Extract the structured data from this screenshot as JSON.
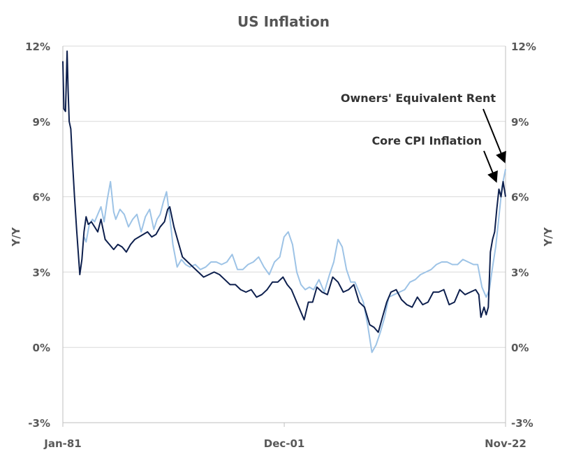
{
  "chart_data": {
    "type": "line",
    "title": "US Inflation",
    "ylabel": "Y/Y",
    "ylabel_right": "Y/Y",
    "ylim": [
      -3,
      12
    ],
    "y_ticks": [
      "12%",
      "9%",
      "6%",
      "3%",
      "0%",
      "-3%"
    ],
    "y_tick_values": [
      12,
      9,
      6,
      3,
      0,
      -3
    ],
    "x_ticks": [
      "Jan-81",
      "Dec-01",
      "Nov-22"
    ],
    "x_tick_values": [
      1981.0,
      2001.92,
      2022.83
    ],
    "xlim": [
      1981.0,
      2022.83
    ],
    "grid": true,
    "legend": "none",
    "annotations": [
      {
        "text": "Owners' Equivalent Rent",
        "series": "oer"
      },
      {
        "text": "Core CPI Inflation",
        "series": "core"
      }
    ],
    "series": [
      {
        "key": "core",
        "color": "#0d1f4d",
        "x": [
          1981.0,
          1981.1,
          1981.25,
          1981.4,
          1981.5,
          1981.6,
          1981.75,
          1981.9,
          1982.1,
          1982.3,
          1982.6,
          1982.8,
          1983.0,
          1983.2,
          1983.4,
          1983.7,
          1984.0,
          1984.3,
          1984.6,
          1985.0,
          1985.4,
          1985.8,
          1986.2,
          1986.6,
          1987.0,
          1987.4,
          1987.8,
          1988.2,
          1988.6,
          1989.0,
          1989.4,
          1989.8,
          1990.2,
          1990.6,
          1990.9,
          1991.1,
          1991.5,
          1991.9,
          1992.3,
          1992.8,
          1993.3,
          1993.8,
          1994.3,
          1994.8,
          1995.3,
          1995.8,
          1996.3,
          1996.8,
          1997.3,
          1997.8,
          1998.3,
          1998.8,
          1999.3,
          1999.8,
          2000.3,
          2000.8,
          2001.3,
          2001.8,
          2002.2,
          2002.6,
          2003.0,
          2003.4,
          2003.8,
          2004.2,
          2004.6,
          2005.0,
          2005.5,
          2006.0,
          2006.5,
          2007.0,
          2007.5,
          2008.0,
          2008.5,
          2009.0,
          2009.5,
          2010.0,
          2010.4,
          2010.8,
          2011.2,
          2011.6,
          2012.0,
          2012.5,
          2013.0,
          2013.5,
          2014.0,
          2014.5,
          2015.0,
          2015.5,
          2016.0,
          2016.5,
          2017.0,
          2017.5,
          2018.0,
          2018.5,
          2019.0,
          2019.5,
          2020.0,
          2020.3,
          2020.5,
          2020.8,
          2021.0,
          2021.2,
          2021.4,
          2021.6,
          2021.8,
          2022.0,
          2022.2,
          2022.4,
          2022.6,
          2022.83
        ],
        "y": [
          11.4,
          9.5,
          9.4,
          11.8,
          10.2,
          9.0,
          8.7,
          7.5,
          6.0,
          4.7,
          2.9,
          3.5,
          4.6,
          5.2,
          4.9,
          5.0,
          4.8,
          4.6,
          5.1,
          4.3,
          4.1,
          3.9,
          4.1,
          4.0,
          3.8,
          4.1,
          4.3,
          4.4,
          4.5,
          4.6,
          4.4,
          4.5,
          4.8,
          5.0,
          5.5,
          5.6,
          4.8,
          4.2,
          3.6,
          3.4,
          3.2,
          3.0,
          2.8,
          2.9,
          3.0,
          2.9,
          2.7,
          2.5,
          2.5,
          2.3,
          2.2,
          2.3,
          2.0,
          2.1,
          2.3,
          2.6,
          2.6,
          2.8,
          2.5,
          2.3,
          1.9,
          1.5,
          1.1,
          1.8,
          1.8,
          2.4,
          2.2,
          2.1,
          2.8,
          2.6,
          2.2,
          2.3,
          2.5,
          1.8,
          1.6,
          0.9,
          0.8,
          0.6,
          1.2,
          1.8,
          2.2,
          2.3,
          1.9,
          1.7,
          1.6,
          2.0,
          1.7,
          1.8,
          2.2,
          2.2,
          2.3,
          1.7,
          1.8,
          2.3,
          2.1,
          2.2,
          2.3,
          2.1,
          1.2,
          1.6,
          1.3,
          1.6,
          3.8,
          4.3,
          4.6,
          5.5,
          6.3,
          6.0,
          6.6,
          6.0
        ]
      },
      {
        "key": "oer",
        "color": "#9dc3e6",
        "x": [
          1983.0,
          1983.2,
          1983.5,
          1983.8,
          1984.0,
          1984.3,
          1984.6,
          1984.9,
          1985.2,
          1985.5,
          1985.8,
          1986.0,
          1986.4,
          1986.8,
          1987.2,
          1987.6,
          1988.0,
          1988.4,
          1988.8,
          1989.2,
          1989.6,
          1989.9,
          1990.2,
          1990.5,
          1990.8,
          1991.1,
          1991.4,
          1991.8,
          1992.2,
          1992.6,
          1993.0,
          1993.5,
          1994.0,
          1994.5,
          1995.0,
          1995.5,
          1996.0,
          1996.5,
          1997.0,
          1997.5,
          1998.0,
          1998.5,
          1999.0,
          1999.5,
          2000.0,
          2000.5,
          2001.0,
          2001.5,
          2001.9,
          2002.3,
          2002.7,
          2003.1,
          2003.5,
          2003.9,
          2004.3,
          2004.7,
          2005.2,
          2005.7,
          2006.2,
          2006.6,
          2007.0,
          2007.4,
          2007.8,
          2008.2,
          2008.6,
          2009.0,
          2009.4,
          2009.8,
          2010.2,
          2010.6,
          2011.0,
          2011.4,
          2011.8,
          2012.3,
          2012.8,
          2013.3,
          2013.8,
          2014.3,
          2014.8,
          2015.3,
          2015.8,
          2016.3,
          2016.8,
          2017.3,
          2017.8,
          2018.3,
          2018.8,
          2019.3,
          2019.8,
          2020.2,
          2020.6,
          2021.0,
          2021.3,
          2021.6,
          2021.9,
          2022.2,
          2022.5,
          2022.83
        ],
        "y": [
          4.4,
          4.2,
          4.9,
          5.1,
          5.0,
          5.3,
          5.6,
          5.0,
          5.9,
          6.6,
          5.4,
          5.1,
          5.5,
          5.3,
          4.8,
          5.1,
          5.3,
          4.6,
          5.2,
          5.5,
          4.7,
          5.1,
          5.3,
          5.8,
          6.2,
          5.2,
          4.1,
          3.2,
          3.5,
          3.3,
          3.2,
          3.3,
          3.1,
          3.2,
          3.4,
          3.4,
          3.3,
          3.4,
          3.7,
          3.1,
          3.1,
          3.3,
          3.4,
          3.6,
          3.2,
          2.9,
          3.4,
          3.6,
          4.4,
          4.6,
          4.1,
          3.0,
          2.5,
          2.3,
          2.4,
          2.3,
          2.7,
          2.2,
          2.9,
          3.4,
          4.3,
          4.0,
          3.1,
          2.6,
          2.6,
          2.2,
          1.8,
          0.9,
          -0.2,
          0.1,
          0.6,
          1.2,
          2.0,
          2.1,
          2.2,
          2.3,
          2.6,
          2.7,
          2.9,
          3.0,
          3.1,
          3.3,
          3.4,
          3.4,
          3.3,
          3.3,
          3.5,
          3.4,
          3.3,
          3.3,
          2.4,
          2.0,
          2.3,
          3.2,
          4.0,
          5.2,
          6.4,
          7.1
        ]
      }
    ]
  }
}
